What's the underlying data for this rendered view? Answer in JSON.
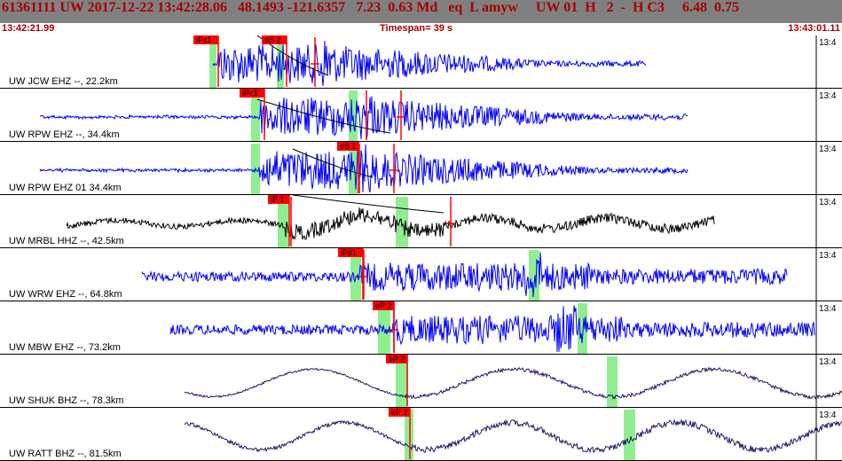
{
  "header": {
    "title": "61361111 UW 2017-12-22 13:42:28.06   48.1493 -121.6357   7.23  0.63 Md   eq  L amyw     UW 01  H   2  -  H C3     6.48  0.75",
    "start_time": "13:42:21.99",
    "timespan": "Timespan=  39 s",
    "end_time": "13:43:01.11"
  },
  "colors": {
    "header_bg": "#808080",
    "header_text": "#a80000",
    "blue_trace": "#0000ff",
    "black_trace": "#000000",
    "navy_trace": "#1a1a66",
    "pick_box": "#ff0000",
    "pick_window": "#90ee90"
  },
  "channels": [
    {
      "label": "UW JCW EHZ --, 22.2km",
      "trace_color": "#0000ff",
      "tick_label": "13:4",
      "picks": [
        {
          "text": "iPc1"
        },
        {
          "text": "eS 2"
        }
      ]
    },
    {
      "label": "UW RPW EHZ --, 34.4km",
      "trace_color": "#0000ff",
      "tick_label": "13:4",
      "picks": [
        {
          "text": "iPc1"
        }
      ]
    },
    {
      "label": "UW RPW EHZ 01 34.4km",
      "trace_color": "#0000ff",
      "tick_label": "13:4",
      "picks": [
        {
          "text": "eS 1"
        }
      ]
    },
    {
      "label": "UW MRBL HHZ --, 42.5km",
      "trace_color": "#000000",
      "tick_label": "13:4",
      "picks": [
        {
          "text": "iP 1"
        }
      ]
    },
    {
      "label": "UW WRW EHZ --, 64.8km",
      "trace_color": "#0000ff",
      "tick_label": "13:4",
      "picks": [
        {
          "text": "iPd1"
        }
      ]
    },
    {
      "label": "UW MBW EHZ --, 73.2km",
      "trace_color": "#0000ff",
      "tick_label": "13:4",
      "picks": [
        {
          "text": "eP 2"
        }
      ]
    },
    {
      "label": "UW SHUK BHZ --, 78.3km",
      "trace_color": "#1a1a66",
      "tick_label": "13:4",
      "picks": [
        {
          "text": "eP 2"
        }
      ]
    },
    {
      "label": "UW RATT BHZ --, 81.5km",
      "trace_color": "#1a1a66",
      "tick_label": "13:4",
      "picks": [
        {
          "text": "eP 2"
        }
      ]
    }
  ]
}
